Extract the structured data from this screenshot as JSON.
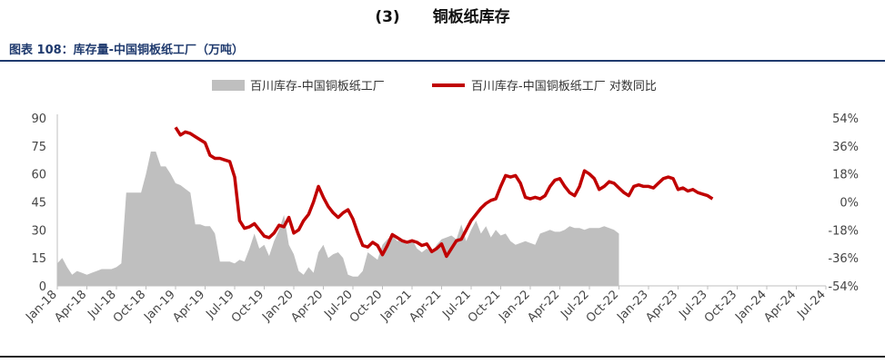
{
  "section_heading": {
    "number": "(3)",
    "title": "铜板纸库存"
  },
  "figure_caption": "图表 108：库存量-中国铜板纸工厂（万吨）",
  "colors": {
    "area": "#bfbfbf",
    "line": "#c00000",
    "caption": "#1f3a6e"
  },
  "chart_data": {
    "type": "area+line",
    "legend": {
      "position": "top-center"
    },
    "grid": false,
    "x_labels": [
      "Jan-18",
      "Apr-18",
      "Jul-18",
      "Oct-18",
      "Jan-19",
      "Apr-19",
      "Jul-19",
      "Oct-19",
      "Jan-20",
      "Apr-20",
      "Jul-20",
      "Oct-20",
      "Jan-21",
      "Apr-21",
      "Jul-21",
      "Oct-21",
      "Jan-22",
      "Apr-22",
      "Jul-22",
      "Oct-22",
      "Jan-23",
      "Apr-23",
      "Jul-23",
      "Oct-23",
      "Jan-24",
      "Apr-24",
      "Jul-24"
    ],
    "y_left": {
      "min": 0,
      "max": 90,
      "ticks": [
        "0",
        "15",
        "30",
        "45",
        "60",
        "75",
        "90"
      ]
    },
    "y_right": {
      "min": -54,
      "max": 54,
      "ticks": [
        "-54%",
        "-36%",
        "-18%",
        "0%",
        "18%",
        "36%",
        "54%"
      ]
    },
    "series": [
      {
        "name": "百川库存-中国铜板纸工厂",
        "kind": "area",
        "axis": "left",
        "points": [
          [
            0,
            12
          ],
          [
            0.5,
            15
          ],
          [
            1,
            10
          ],
          [
            1.5,
            6
          ],
          [
            2,
            8
          ],
          [
            2.5,
            7
          ],
          [
            3,
            6
          ],
          [
            3.5,
            7
          ],
          [
            4,
            8
          ],
          [
            4.5,
            9
          ],
          [
            5,
            9
          ],
          [
            5.5,
            9
          ],
          [
            6,
            10
          ],
          [
            6.5,
            12
          ],
          [
            7,
            50
          ],
          [
            7.5,
            50
          ],
          [
            8,
            50
          ],
          [
            8.5,
            50
          ],
          [
            9,
            60
          ],
          [
            9.5,
            72
          ],
          [
            10,
            72
          ],
          [
            10.5,
            64
          ],
          [
            11,
            64
          ],
          [
            11.5,
            60
          ],
          [
            12,
            55
          ],
          [
            12.5,
            54
          ],
          [
            13,
            52
          ],
          [
            13.5,
            50
          ],
          [
            14,
            33
          ],
          [
            14.5,
            33
          ],
          [
            15,
            32
          ],
          [
            15.5,
            32
          ],
          [
            16,
            28
          ],
          [
            16.5,
            13
          ],
          [
            17,
            13
          ],
          [
            17.5,
            13
          ],
          [
            18,
            12
          ],
          [
            18.5,
            14
          ],
          [
            19,
            13
          ],
          [
            19.5,
            20
          ],
          [
            20,
            28
          ],
          [
            20.5,
            20
          ],
          [
            21,
            22
          ],
          [
            21.5,
            16
          ],
          [
            22,
            24
          ],
          [
            22.5,
            30
          ],
          [
            23,
            38
          ],
          [
            23.5,
            22
          ],
          [
            24,
            17
          ],
          [
            24.5,
            8
          ],
          [
            25,
            6
          ],
          [
            25.5,
            10
          ],
          [
            26,
            7
          ],
          [
            26.5,
            18
          ],
          [
            27,
            22
          ],
          [
            27.5,
            15
          ],
          [
            28,
            17
          ],
          [
            28.5,
            18
          ],
          [
            29,
            15
          ],
          [
            29.5,
            6
          ],
          [
            30,
            5
          ],
          [
            30.5,
            5
          ],
          [
            31,
            8
          ],
          [
            31.5,
            18
          ],
          [
            32,
            16
          ],
          [
            32.5,
            14
          ],
          [
            33,
            22
          ],
          [
            33.5,
            25
          ],
          [
            34,
            27
          ],
          [
            34.5,
            24
          ],
          [
            35,
            25
          ],
          [
            35.5,
            22
          ],
          [
            36,
            25
          ],
          [
            36.5,
            20
          ],
          [
            37,
            18
          ],
          [
            37.5,
            20
          ],
          [
            38,
            18
          ],
          [
            38.5,
            22
          ],
          [
            39,
            25
          ],
          [
            39.5,
            26
          ],
          [
            40,
            27
          ],
          [
            40.5,
            25
          ],
          [
            41,
            33
          ],
          [
            41.5,
            24
          ],
          [
            42,
            30
          ],
          [
            42.5,
            35
          ],
          [
            43,
            28
          ],
          [
            43.5,
            32
          ],
          [
            44,
            26
          ],
          [
            44.5,
            30
          ],
          [
            45,
            27
          ],
          [
            45.5,
            28
          ],
          [
            46,
            24
          ],
          [
            46.5,
            22
          ],
          [
            47,
            23
          ],
          [
            47.5,
            24
          ],
          [
            48,
            23
          ],
          [
            48.5,
            22
          ],
          [
            49,
            28
          ],
          [
            49.5,
            29
          ],
          [
            50,
            30
          ],
          [
            50.5,
            29
          ],
          [
            51,
            29
          ],
          [
            51.5,
            30
          ],
          [
            52,
            32
          ],
          [
            52.5,
            31
          ],
          [
            53,
            31
          ],
          [
            53.5,
            30
          ],
          [
            54,
            31
          ],
          [
            54.5,
            31
          ],
          [
            55,
            31
          ],
          [
            55.5,
            32
          ],
          [
            56,
            31
          ],
          [
            56.5,
            30
          ],
          [
            57,
            28
          ]
        ]
      },
      {
        "name": "百川库存-中国铜板纸工厂 对数同比",
        "kind": "line",
        "axis": "right",
        "points": [
          [
            12,
            48
          ],
          [
            12.5,
            43
          ],
          [
            13,
            45
          ],
          [
            13.5,
            44
          ],
          [
            14,
            42
          ],
          [
            14.5,
            40
          ],
          [
            15,
            38
          ],
          [
            15.5,
            30
          ],
          [
            16,
            28
          ],
          [
            16.5,
            28
          ],
          [
            17,
            27
          ],
          [
            17.5,
            26
          ],
          [
            18,
            16
          ],
          [
            18.5,
            -12
          ],
          [
            19,
            -17
          ],
          [
            19.5,
            -16
          ],
          [
            20,
            -14
          ],
          [
            20.5,
            -18
          ],
          [
            21,
            -22
          ],
          [
            21.5,
            -23
          ],
          [
            22,
            -20
          ],
          [
            22.5,
            -15
          ],
          [
            23,
            -16
          ],
          [
            23.5,
            -10
          ],
          [
            24,
            -20
          ],
          [
            24.5,
            -18
          ],
          [
            25,
            -12
          ],
          [
            25.5,
            -8
          ],
          [
            26,
            0
          ],
          [
            26.5,
            10
          ],
          [
            27,
            3
          ],
          [
            27.5,
            -3
          ],
          [
            28,
            -7
          ],
          [
            28.5,
            -10
          ],
          [
            29,
            -7
          ],
          [
            29.5,
            -5
          ],
          [
            30,
            -11
          ],
          [
            30.5,
            -20
          ],
          [
            31,
            -28
          ],
          [
            31.5,
            -29
          ],
          [
            32,
            -26
          ],
          [
            32.5,
            -28
          ],
          [
            33,
            -34
          ],
          [
            33.5,
            -28
          ],
          [
            34,
            -21
          ],
          [
            34.5,
            -23
          ],
          [
            35,
            -25
          ],
          [
            35.5,
            -26
          ],
          [
            36,
            -25
          ],
          [
            36.5,
            -26
          ],
          [
            37,
            -28
          ],
          [
            37.5,
            -27
          ],
          [
            38,
            -32
          ],
          [
            38.5,
            -30
          ],
          [
            39,
            -27
          ],
          [
            39.5,
            -35
          ],
          [
            40,
            -30
          ],
          [
            40.5,
            -25
          ],
          [
            41,
            -24
          ],
          [
            41.5,
            -18
          ],
          [
            42,
            -12
          ],
          [
            42.5,
            -8
          ],
          [
            43,
            -4
          ],
          [
            43.5,
            -1
          ],
          [
            44,
            1
          ],
          [
            44.5,
            2
          ],
          [
            45,
            10
          ],
          [
            45.5,
            17
          ],
          [
            46,
            16
          ],
          [
            46.5,
            17
          ],
          [
            47,
            12
          ],
          [
            47.5,
            3
          ],
          [
            48,
            2
          ],
          [
            48.5,
            3
          ],
          [
            49,
            2
          ],
          [
            49.5,
            4
          ],
          [
            50,
            10
          ],
          [
            50.5,
            14
          ],
          [
            51,
            15
          ],
          [
            51.5,
            10
          ],
          [
            52,
            6
          ],
          [
            52.5,
            4
          ],
          [
            53,
            10
          ],
          [
            53.5,
            20
          ],
          [
            54,
            18
          ],
          [
            54.5,
            15
          ],
          [
            55,
            8
          ],
          [
            55.5,
            10
          ],
          [
            56,
            13
          ],
          [
            56.5,
            12
          ],
          [
            57,
            9
          ],
          [
            57.5,
            6
          ],
          [
            58,
            4
          ],
          [
            58.5,
            10
          ],
          [
            59,
            11
          ],
          [
            59.5,
            10
          ],
          [
            60,
            10
          ],
          [
            60.5,
            9
          ],
          [
            61,
            12
          ],
          [
            61.5,
            15
          ],
          [
            62,
            16
          ],
          [
            62.5,
            15
          ],
          [
            63,
            8
          ],
          [
            63.5,
            9
          ],
          [
            64,
            7
          ],
          [
            64.5,
            8
          ],
          [
            65,
            6
          ],
          [
            65.5,
            5
          ],
          [
            66,
            4
          ],
          [
            66.5,
            2
          ]
        ]
      }
    ]
  }
}
